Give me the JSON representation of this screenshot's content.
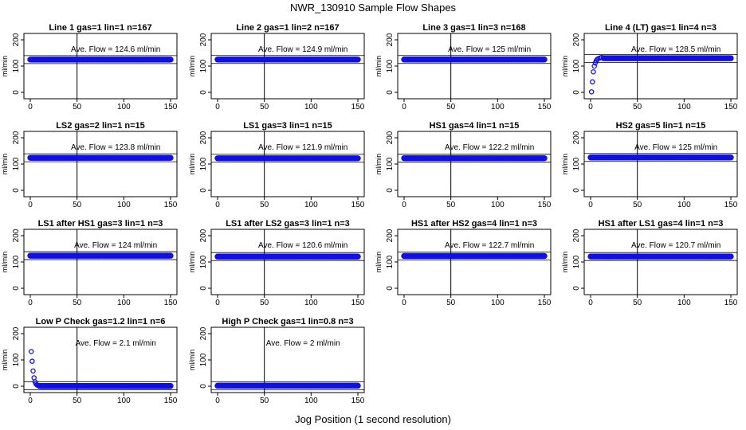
{
  "figure": {
    "title": "NWR_130910  Sample Flow Shapes",
    "xlabel": "Jog Position (1 second resolution)"
  },
  "colors": {
    "points": "#1010e0",
    "axes": "#000000",
    "background": "#ffffff"
  },
  "chart_data": [
    {
      "type": "scatter",
      "title": "Line 1 gas=1 lin=1 n=167",
      "ylabel": "ml/min",
      "xlim": [
        0,
        150
      ],
      "ylim": [
        0,
        200
      ],
      "xticks": [
        0,
        50,
        100,
        150
      ],
      "yticks": [
        0,
        100,
        200
      ],
      "annotation": "Ave. Flow =  124.6  ml/min",
      "level": 124.6,
      "vline": 50,
      "series": [
        {
          "points": "flat",
          "x": [
            0,
            150
          ],
          "y": 124.6
        }
      ]
    },
    {
      "type": "scatter",
      "title": "Line 2 gas=1 lin=2 n=167",
      "ylabel": "ml/min",
      "xlim": [
        0,
        150
      ],
      "ylim": [
        0,
        200
      ],
      "xticks": [
        0,
        50,
        100,
        150
      ],
      "yticks": [
        0,
        100,
        200
      ],
      "annotation": "Ave. Flow =  124.9  ml/min",
      "level": 124.9,
      "vline": 50,
      "series": [
        {
          "points": "flat",
          "x": [
            0,
            150
          ],
          "y": 124.9
        }
      ]
    },
    {
      "type": "scatter",
      "title": "Line 3 gas=1 lin=3 n=168",
      "ylabel": "ml/min",
      "xlim": [
        0,
        150
      ],
      "ylim": [
        0,
        200
      ],
      "xticks": [
        0,
        50,
        100,
        150
      ],
      "yticks": [
        0,
        100,
        200
      ],
      "annotation": "Ave. Flow =  125  ml/min",
      "level": 125,
      "vline": 50,
      "series": [
        {
          "points": "flat",
          "x": [
            0,
            150
          ],
          "y": 125
        }
      ]
    },
    {
      "type": "scatter",
      "title": "Line 4 (LT) gas=1 lin=4 n=3",
      "ylabel": "ml/min",
      "xlim": [
        0,
        150
      ],
      "ylim": [
        0,
        200
      ],
      "xticks": [
        0,
        50,
        100,
        150
      ],
      "yticks": [
        0,
        100,
        200
      ],
      "annotation": "Ave. Flow =  128.5  ml/min",
      "level": 128.5,
      "vline": 50,
      "series": [
        {
          "x_start": [
            1,
            2,
            3,
            4,
            5,
            6,
            7,
            8,
            10,
            12
          ],
          "y_start": [
            2,
            40,
            78,
            100,
            112,
            120,
            125,
            128,
            131,
            133
          ],
          "x": [
            14,
            150
          ],
          "y": 130
        }
      ]
    },
    {
      "type": "scatter",
      "title": "LS2 gas=2 lin=1 n=15",
      "ylabel": "ml/min",
      "xlim": [
        0,
        150
      ],
      "ylim": [
        0,
        200
      ],
      "xticks": [
        0,
        50,
        100,
        150
      ],
      "yticks": [
        0,
        100,
        200
      ],
      "annotation": "Ave. Flow =  123.8  ml/min",
      "level": 123.8,
      "vline": 50,
      "series": [
        {
          "x": [
            0,
            150
          ],
          "y": 123.8
        }
      ]
    },
    {
      "type": "scatter",
      "title": "LS1 gas=3 lin=1 n=15",
      "ylabel": "ml/min",
      "xlim": [
        0,
        150
      ],
      "ylim": [
        0,
        200
      ],
      "xticks": [
        0,
        50,
        100,
        150
      ],
      "yticks": [
        0,
        100,
        200
      ],
      "annotation": "Ave. Flow =  121.9  ml/min",
      "level": 121.9,
      "vline": 50,
      "series": [
        {
          "x": [
            0,
            150
          ],
          "y": 121.9
        }
      ]
    },
    {
      "type": "scatter",
      "title": "HS1 gas=4 lin=1 n=15",
      "ylabel": "ml/min",
      "xlim": [
        0,
        150
      ],
      "ylim": [
        0,
        200
      ],
      "xticks": [
        0,
        50,
        100,
        150
      ],
      "yticks": [
        0,
        100,
        200
      ],
      "annotation": "Ave. Flow =  122.2  ml/min",
      "level": 122.2,
      "vline": 50,
      "series": [
        {
          "x": [
            0,
            150
          ],
          "y": 122.2
        }
      ]
    },
    {
      "type": "scatter",
      "title": "HS2 gas=5 lin=1 n=15",
      "ylabel": "ml/min",
      "xlim": [
        0,
        150
      ],
      "ylim": [
        0,
        200
      ],
      "xticks": [
        0,
        50,
        100,
        150
      ],
      "yticks": [
        0,
        100,
        200
      ],
      "annotation": "Ave. Flow =  125  ml/min",
      "level": 125,
      "vline": 50,
      "series": [
        {
          "x": [
            0,
            150
          ],
          "y": 125
        }
      ]
    },
    {
      "type": "scatter",
      "title": "LS1 after HS1 gas=3 lin=1 n=3",
      "ylabel": "ml/min",
      "xlim": [
        0,
        150
      ],
      "ylim": [
        0,
        200
      ],
      "xticks": [
        0,
        50,
        100,
        150
      ],
      "yticks": [
        0,
        100,
        200
      ],
      "annotation": "Ave. Flow =  124  ml/min",
      "level": 124,
      "vline": 50,
      "series": [
        {
          "x": [
            0,
            150
          ],
          "y": 124
        }
      ]
    },
    {
      "type": "scatter",
      "title": "LS1 after LS2 gas=3 lin=1 n=3",
      "ylabel": "ml/min",
      "xlim": [
        0,
        150
      ],
      "ylim": [
        0,
        200
      ],
      "xticks": [
        0,
        50,
        100,
        150
      ],
      "yticks": [
        0,
        100,
        200
      ],
      "annotation": "Ave. Flow =  120.6  ml/min",
      "level": 120.6,
      "vline": 50,
      "series": [
        {
          "x": [
            0,
            150
          ],
          "y": 120.6
        }
      ]
    },
    {
      "type": "scatter",
      "title": "HS1 after HS2 gas=4 lin=1 n=3",
      "ylabel": "ml/min",
      "xlim": [
        0,
        150
      ],
      "ylim": [
        0,
        200
      ],
      "xticks": [
        0,
        50,
        100,
        150
      ],
      "yticks": [
        0,
        100,
        200
      ],
      "annotation": "Ave. Flow =  122.7  ml/min",
      "level": 122.7,
      "vline": 50,
      "series": [
        {
          "x": [
            0,
            150
          ],
          "y": 122.7
        }
      ]
    },
    {
      "type": "scatter",
      "title": "HS1 after LS1 gas=4 lin=1 n=3",
      "ylabel": "ml/min",
      "xlim": [
        0,
        150
      ],
      "ylim": [
        0,
        200
      ],
      "xticks": [
        0,
        50,
        100,
        150
      ],
      "yticks": [
        0,
        100,
        200
      ],
      "annotation": "Ave. Flow =  120.7  ml/min",
      "level": 120.7,
      "vline": 50,
      "series": [
        {
          "x": [
            0,
            150
          ],
          "y": 120.7
        }
      ]
    },
    {
      "type": "scatter",
      "title": "Low P Check gas=1.2 lin=1 n=6",
      "ylabel": "ml/min",
      "xlim": [
        0,
        150
      ],
      "ylim": [
        0,
        200
      ],
      "xticks": [
        0,
        50,
        100,
        150
      ],
      "yticks": [
        0,
        100,
        200
      ],
      "annotation": "Ave. Flow =  2.1  ml/min",
      "level": 2.1,
      "vline": 50,
      "series": [
        {
          "x_start": [
            1,
            2,
            3,
            4,
            5,
            6,
            7,
            8,
            9
          ],
          "y_start": [
            132,
            95,
            58,
            32,
            17,
            9,
            5,
            3,
            2
          ],
          "x": [
            10,
            150
          ],
          "y": 1
        }
      ]
    },
    {
      "type": "scatter",
      "title": "High P Check gas=1 lin=0.8 n=3",
      "ylabel": "ml/min",
      "xlim": [
        0,
        150
      ],
      "ylim": [
        0,
        200
      ],
      "xticks": [
        0,
        50,
        100,
        150
      ],
      "yticks": [
        0,
        100,
        200
      ],
      "annotation": "Ave. Flow =  2  ml/min",
      "level": 2,
      "vline": 50,
      "series": [
        {
          "x": [
            0,
            150
          ],
          "y": 2
        }
      ]
    }
  ]
}
